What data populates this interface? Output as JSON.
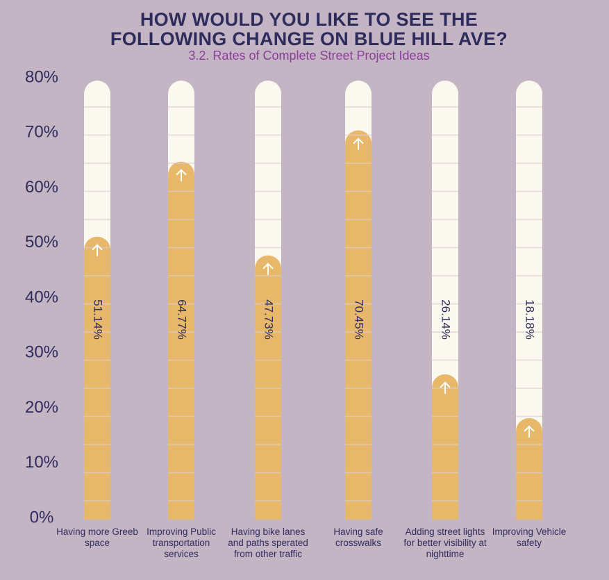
{
  "chart_data": {
    "type": "bar",
    "title": "HOW WOULD YOU LIKE TO SEE THE FOLLOWING CHANGE ON BLUE HILL AVE?",
    "subtitle": "3.2. Rates of Complete Street Project Ideas",
    "categories": [
      "Having more Greeb space",
      "Improving Public transportation services",
      "Having bike lanes and paths sperated from other traffic",
      "Having safe crosswalks",
      "Adding street lights for better visibility at nighttime",
      "Improving Vehicle safety"
    ],
    "values": [
      51.14,
      64.77,
      47.73,
      70.45,
      26.14,
      18.18
    ],
    "value_labels": [
      "51.14%",
      "64.77%",
      "47.73%",
      "70.45%",
      "26.14%",
      "18.18%"
    ],
    "color": "#e8b86a",
    "ylim": [
      0,
      80
    ],
    "yticks": [
      {
        "value": 0,
        "label": "0%"
      },
      {
        "value": 10,
        "label": "10%"
      },
      {
        "value": 20,
        "label": "20%"
      },
      {
        "value": 30,
        "label": "30%"
      },
      {
        "value": 40,
        "label": "40%"
      },
      {
        "value": 50,
        "label": "50%"
      },
      {
        "value": 60,
        "label": "60%"
      },
      {
        "value": 70,
        "label": "70%"
      },
      {
        "value": 80,
        "label": "80%"
      }
    ],
    "grid": false
  }
}
